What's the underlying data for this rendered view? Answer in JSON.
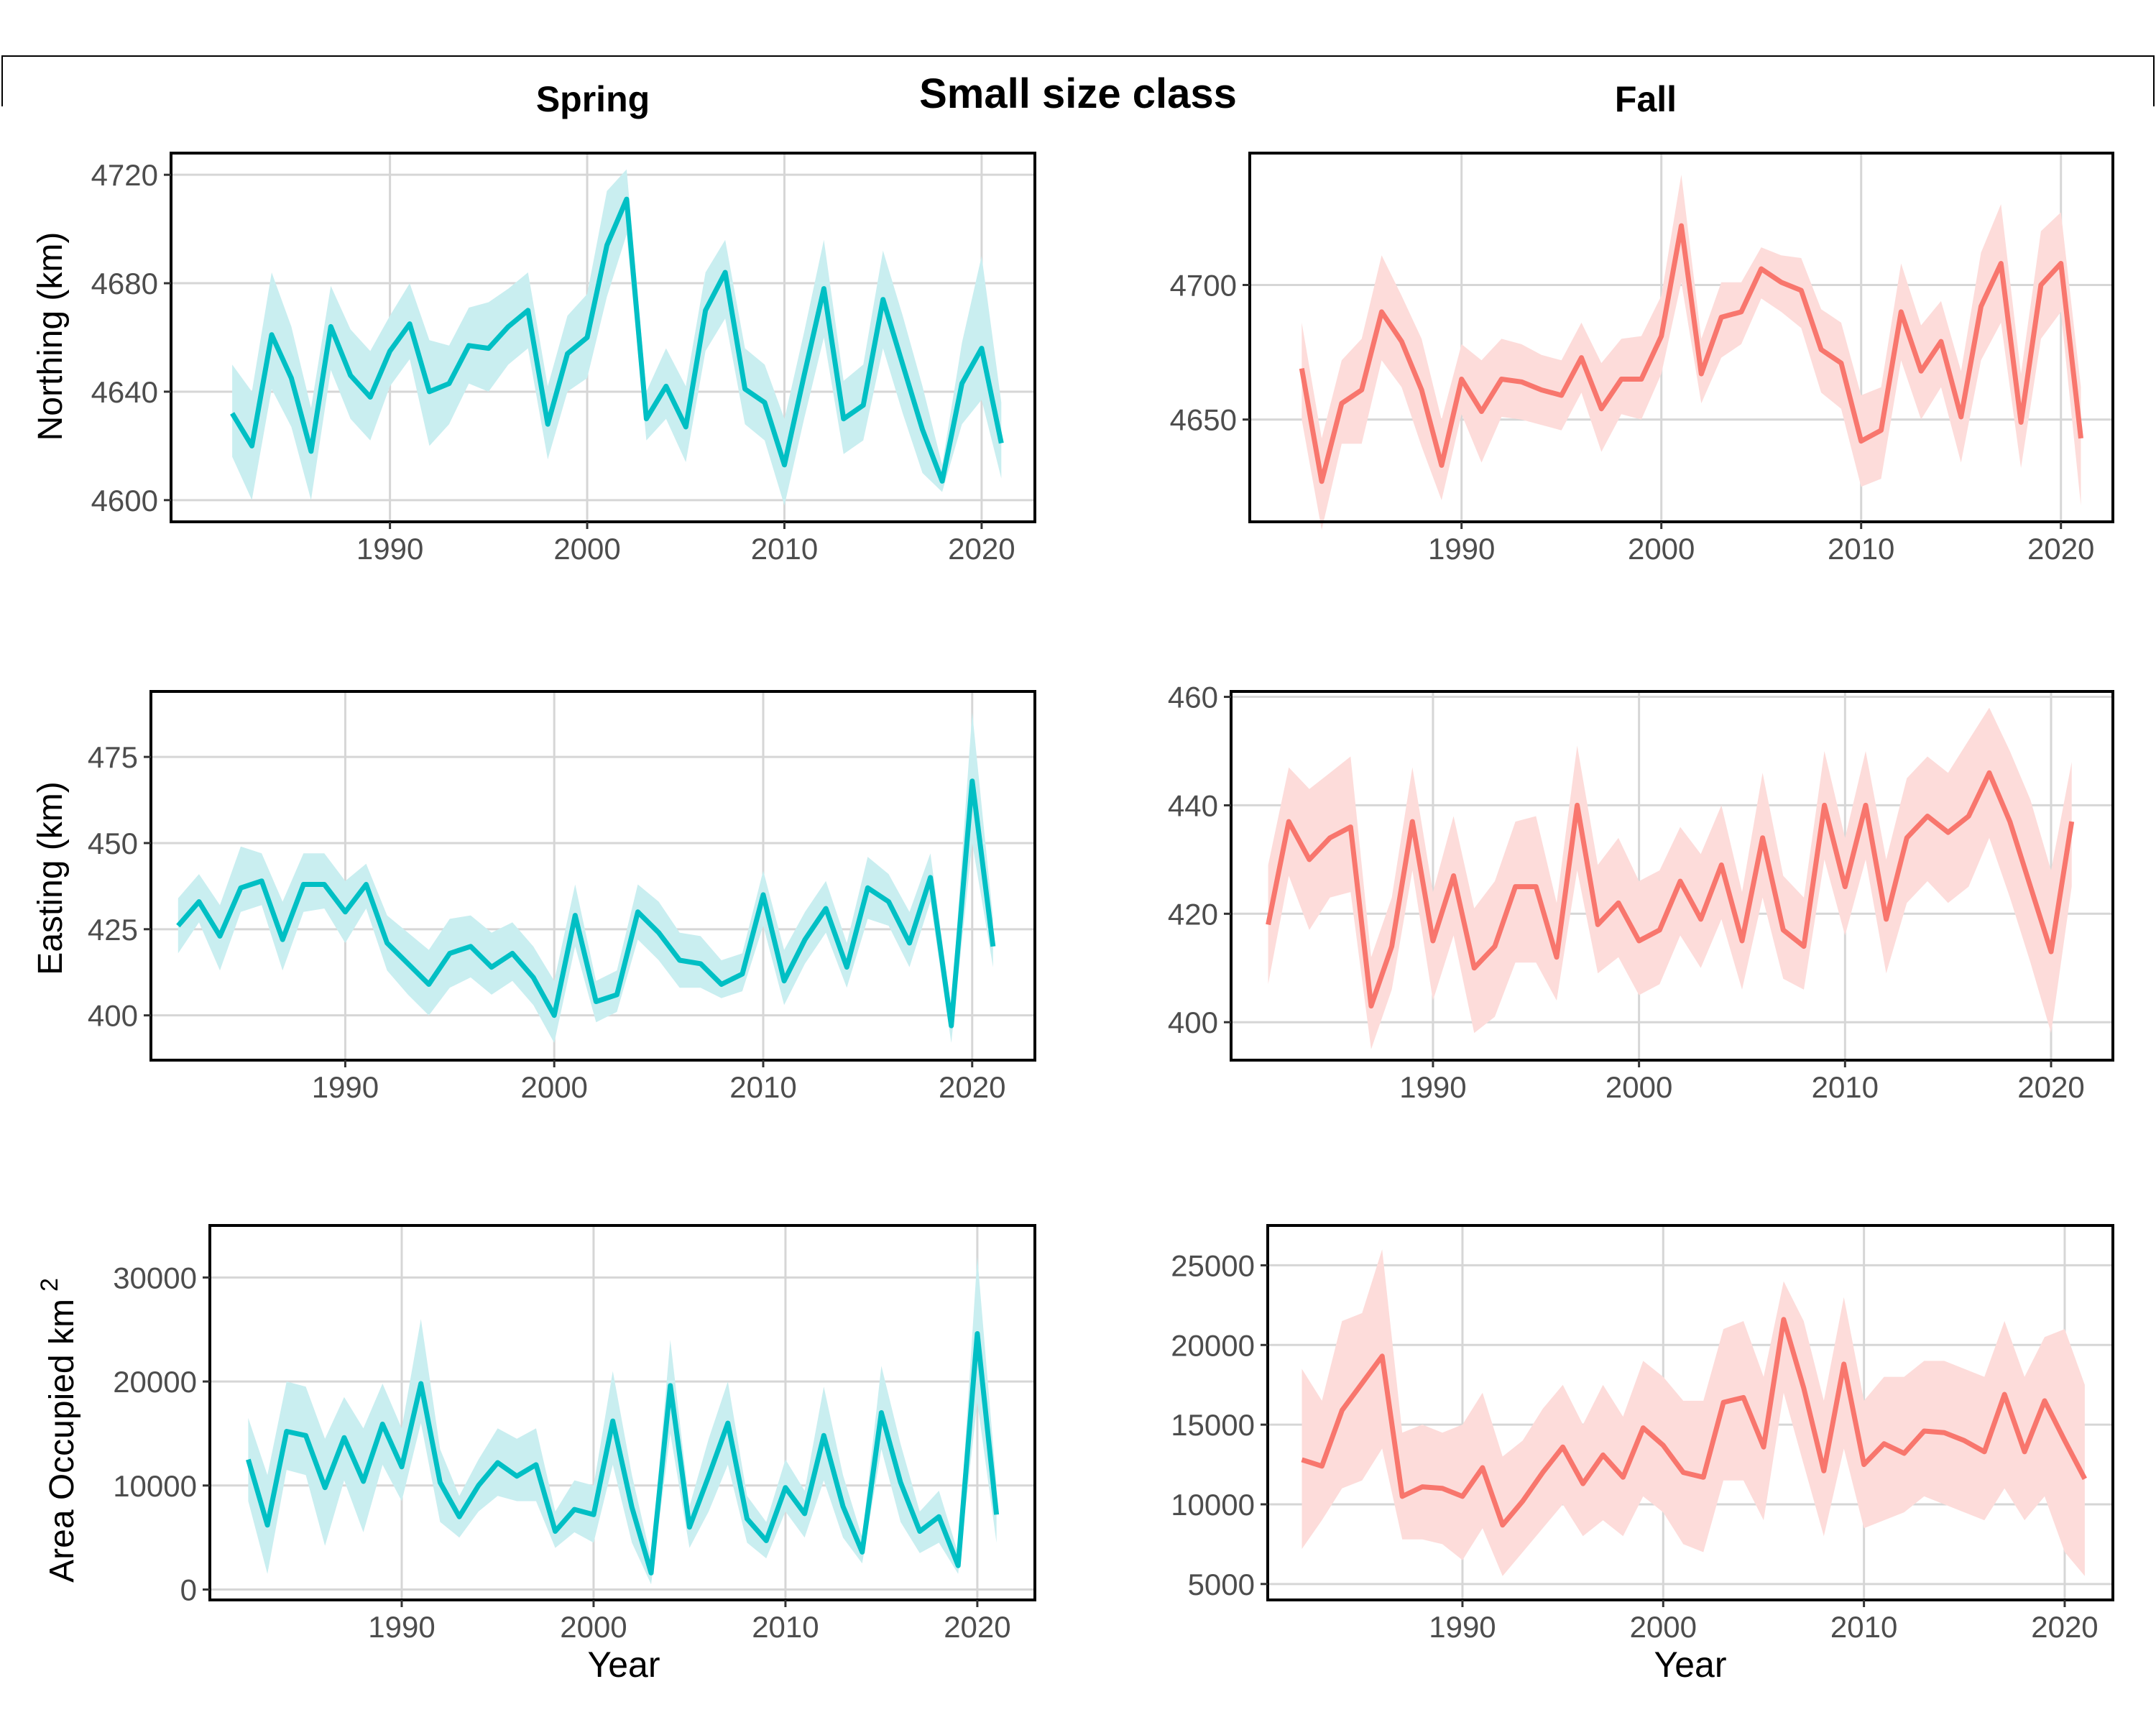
{
  "figure": {
    "title": "Small size class",
    "column_titles": [
      "Spring",
      "Fall"
    ],
    "x_axis_title": "Year",
    "row_axis_titles": [
      "Northing (km)",
      "Easting (km)",
      "Area Occupied km"
    ],
    "area_superscript": "2"
  },
  "colors": {
    "spring_line": "#00BFC4",
    "spring_band": "#C9EEF0",
    "fall_line": "#F8766D",
    "fall_band": "#FDDCDA",
    "grid": "#D6D6D6",
    "frame": "#000000"
  },
  "chart_data": [
    {
      "id": "spring-northing",
      "type": "line",
      "season": "Spring",
      "ylabel": "Northing (km)",
      "x": [
        1982,
        1983,
        1984,
        1985,
        1986,
        1987,
        1988,
        1989,
        1990,
        1991,
        1992,
        1993,
        1994,
        1995,
        1996,
        1997,
        1998,
        1999,
        2000,
        2001,
        2002,
        2003,
        2004,
        2005,
        2006,
        2007,
        2008,
        2009,
        2010,
        2011,
        2012,
        2013,
        2014,
        2015,
        2016,
        2017,
        2018,
        2019,
        2020,
        2021
      ],
      "y": [
        4632,
        4620,
        4661,
        4645,
        4618,
        4664,
        4646,
        4638,
        4655,
        4665,
        4640,
        4643,
        4657,
        4656,
        4664,
        4670,
        4628,
        4654,
        4660,
        4694,
        4711,
        4630,
        4642,
        4627,
        4670,
        4684,
        4641,
        4636,
        4613,
        4646,
        4678,
        4630,
        4635,
        4674,
        4650,
        4626,
        4607,
        4643,
        4656,
        4621
      ],
      "lower": [
        4616,
        4600,
        4641,
        4627,
        4600,
        4648,
        4630,
        4622,
        4642,
        4652,
        4620,
        4628,
        4643,
        4640,
        4650,
        4656,
        4615,
        4640,
        4645,
        4675,
        4698,
        4622,
        4630,
        4614,
        4655,
        4667,
        4628,
        4622,
        4598,
        4630,
        4660,
        4617,
        4622,
        4656,
        4632,
        4610,
        4603,
        4628,
        4637,
        4608
      ],
      "upper": [
        4650,
        4640,
        4684,
        4664,
        4634,
        4679,
        4663,
        4655,
        4668,
        4680,
        4659,
        4657,
        4671,
        4673,
        4678,
        4684,
        4642,
        4668,
        4676,
        4714,
        4722,
        4640,
        4656,
        4642,
        4684,
        4696,
        4656,
        4650,
        4630,
        4662,
        4696,
        4644,
        4650,
        4692,
        4668,
        4642,
        4613,
        4658,
        4690,
        4636
      ],
      "ylim": [
        4592,
        4728
      ],
      "yticks": [
        4600,
        4640,
        4680,
        4720
      ],
      "xlim": [
        1978.9,
        2022.7
      ],
      "xticks": [
        1990,
        2000,
        2010,
        2020
      ]
    },
    {
      "id": "fall-northing",
      "type": "line",
      "season": "Fall",
      "ylabel": "",
      "x": [
        1982,
        1983,
        1984,
        1985,
        1986,
        1987,
        1988,
        1989,
        1990,
        1991,
        1992,
        1993,
        1994,
        1995,
        1996,
        1997,
        1998,
        1999,
        2000,
        2001,
        2002,
        2003,
        2004,
        2005,
        2006,
        2007,
        2008,
        2009,
        2010,
        2011,
        2012,
        2013,
        2014,
        2015,
        2016,
        2017,
        2018,
        2019,
        2020,
        2021
      ],
      "y": [
        4669,
        4627,
        4656,
        4661,
        4690,
        4679,
        4661,
        4633,
        4665,
        4653,
        4665,
        4664,
        4661,
        4659,
        4673,
        4654,
        4665,
        4665,
        4681,
        4722,
        4667,
        4688,
        4690,
        4706,
        4701,
        4698,
        4676,
        4671,
        4642,
        4646,
        4690,
        4668,
        4679,
        4651,
        4692,
        4708,
        4649,
        4700,
        4708,
        4643
      ],
      "lower": [
        4650,
        4609,
        4641,
        4641,
        4672,
        4662,
        4640,
        4620,
        4652,
        4634,
        4651,
        4650,
        4648,
        4646,
        4660,
        4638,
        4652,
        4650,
        4667,
        4701,
        4656,
        4673,
        4678,
        4695,
        4690,
        4684,
        4660,
        4654,
        4625,
        4628,
        4672,
        4650,
        4662,
        4634,
        4672,
        4686,
        4632,
        4680,
        4690,
        4618
      ],
      "upper": [
        4686,
        4643,
        4672,
        4680,
        4711,
        4696,
        4680,
        4650,
        4678,
        4672,
        4680,
        4678,
        4674,
        4672,
        4686,
        4671,
        4680,
        4681,
        4696,
        4741,
        4680,
        4701,
        4701,
        4714,
        4711,
        4710,
        4691,
        4686,
        4659,
        4662,
        4708,
        4685,
        4694,
        4668,
        4712,
        4730,
        4667,
        4720,
        4727,
        4662
      ],
      "ylim": [
        4612,
        4749
      ],
      "yticks": [
        4650,
        4700
      ],
      "xlim": [
        1979.4,
        2022.6
      ],
      "xticks": [
        1990,
        2000,
        2010,
        2020
      ]
    },
    {
      "id": "spring-easting",
      "type": "line",
      "season": "Spring",
      "ylabel": "Easting (km)",
      "x": [
        1982,
        1983,
        1984,
        1985,
        1986,
        1987,
        1988,
        1989,
        1990,
        1991,
        1992,
        1993,
        1994,
        1995,
        1996,
        1997,
        1998,
        1999,
        2000,
        2001,
        2002,
        2003,
        2004,
        2005,
        2006,
        2007,
        2008,
        2009,
        2010,
        2011,
        2012,
        2013,
        2014,
        2015,
        2016,
        2017,
        2018,
        2019,
        2020,
        2021
      ],
      "y": [
        426,
        433,
        423,
        437,
        439,
        422,
        438,
        438,
        430,
        438,
        421,
        415,
        409,
        418,
        420,
        414,
        418,
        411,
        400,
        429,
        404,
        406,
        430,
        424,
        416,
        415,
        409,
        412,
        435,
        410,
        422,
        431,
        414,
        437,
        433,
        421,
        440,
        397,
        468,
        420
      ],
      "lower": [
        418,
        427,
        413,
        430,
        432,
        413,
        430,
        431,
        421,
        431,
        413,
        406,
        400,
        408,
        411,
        406,
        410,
        403,
        392,
        420,
        398,
        401,
        422,
        416,
        408,
        408,
        405,
        407,
        426,
        403,
        415,
        424,
        408,
        428,
        426,
        414,
        433,
        392,
        450,
        414
      ],
      "upper": [
        434,
        441,
        432,
        449,
        447,
        433,
        447,
        447,
        439,
        444,
        429,
        424,
        419,
        428,
        429,
        424,
        427,
        420,
        410,
        438,
        410,
        413,
        438,
        433,
        424,
        423,
        416,
        418,
        442,
        419,
        430,
        439,
        421,
        446,
        441,
        430,
        447,
        402,
        488,
        428
      ],
      "ylim": [
        387,
        494
      ],
      "yticks": [
        400,
        425,
        450,
        475
      ],
      "xlim": [
        1980.7,
        2023.0
      ],
      "xticks": [
        1990,
        2000,
        2010,
        2020
      ]
    },
    {
      "id": "fall-easting",
      "type": "line",
      "season": "Fall",
      "ylabel": "",
      "x": [
        1982,
        1983,
        1984,
        1985,
        1986,
        1987,
        1988,
        1989,
        1990,
        1991,
        1992,
        1993,
        1994,
        1995,
        1996,
        1997,
        1998,
        1999,
        2000,
        2001,
        2002,
        2003,
        2004,
        2005,
        2006,
        2007,
        2008,
        2009,
        2010,
        2011,
        2012,
        2013,
        2014,
        2015,
        2016,
        2017,
        2018,
        2019,
        2020,
        2021
      ],
      "y": [
        418,
        437,
        430,
        434,
        436,
        403,
        414,
        437,
        415,
        427,
        410,
        414,
        425,
        425,
        412,
        440,
        418,
        422,
        415,
        417,
        426,
        419,
        429,
        415,
        434,
        417,
        414,
        440,
        425,
        440,
        419,
        434,
        438,
        435,
        438,
        446,
        437,
        425,
        413,
        437
      ],
      "lower": [
        407,
        427,
        417,
        423,
        424,
        395,
        406,
        428,
        404,
        416,
        398,
        401,
        411,
        411,
        404,
        428,
        409,
        412,
        405,
        407,
        416,
        410,
        419,
        406,
        423,
        408,
        406,
        430,
        416,
        430,
        409,
        422,
        426,
        422,
        425,
        434,
        423,
        411,
        398,
        425
      ],
      "upper": [
        429,
        447,
        443,
        446,
        449,
        412,
        423,
        447,
        424,
        438,
        421,
        426,
        437,
        438,
        422,
        451,
        429,
        434,
        426,
        428,
        436,
        431,
        440,
        424,
        446,
        427,
        423,
        450,
        434,
        450,
        430,
        445,
        449,
        446,
        452,
        458,
        450,
        441,
        428,
        448
      ],
      "ylim": [
        393,
        461
      ],
      "yticks": [
        400,
        420,
        440,
        460
      ],
      "xlim": [
        1980.2,
        2023.0
      ],
      "xticks": [
        1990,
        2000,
        2010,
        2020
      ]
    },
    {
      "id": "spring-area",
      "type": "line",
      "season": "Spring",
      "ylabel": "Area Occupied km 2",
      "x": [
        1982,
        1983,
        1984,
        1985,
        1986,
        1987,
        1988,
        1989,
        1990,
        1991,
        1992,
        1993,
        1994,
        1995,
        1996,
        1997,
        1998,
        1999,
        2000,
        2001,
        2002,
        2003,
        2004,
        2005,
        2006,
        2007,
        2008,
        2009,
        2010,
        2011,
        2012,
        2013,
        2014,
        2015,
        2016,
        2017,
        2018,
        2019,
        2020,
        2021
      ],
      "y": [
        12500,
        6200,
        15200,
        14800,
        9800,
        14600,
        10400,
        15900,
        11800,
        19800,
        10300,
        7000,
        10000,
        12200,
        10900,
        12000,
        5600,
        7700,
        7200,
        16200,
        7900,
        1600,
        19600,
        6000,
        10900,
        16000,
        6800,
        4700,
        9800,
        7300,
        14800,
        8000,
        3600,
        17000,
        10300,
        5600,
        7000,
        2300,
        24600,
        7200
      ],
      "lower": [
        8500,
        1500,
        11500,
        11000,
        4200,
        10500,
        5500,
        12000,
        8500,
        16000,
        6500,
        5000,
        7500,
        9000,
        8500,
        8500,
        4000,
        5500,
        4500,
        12000,
        4500,
        500,
        15000,
        4000,
        7500,
        12000,
        4500,
        3000,
        7500,
        5000,
        10500,
        5000,
        2500,
        13500,
        6500,
        3500,
        4500,
        1500,
        18000,
        4500
      ],
      "upper": [
        16500,
        11000,
        20000,
        19500,
        14500,
        18500,
        15500,
        19800,
        15500,
        26000,
        13500,
        9000,
        12500,
        15500,
        14500,
        15500,
        7500,
        10500,
        10000,
        21000,
        11000,
        3000,
        24000,
        8000,
        14500,
        20000,
        9000,
        6500,
        12500,
        9500,
        19500,
        11000,
        5000,
        21500,
        14000,
        7500,
        9500,
        3500,
        32000,
        10000
      ],
      "ylim": [
        -1000,
        35000
      ],
      "yticks": [
        0,
        10000,
        20000,
        30000
      ],
      "xlim": [
        1980.0,
        2023.0
      ],
      "xticks": [
        1990,
        2000,
        2010,
        2020
      ]
    },
    {
      "id": "fall-area",
      "type": "line",
      "season": "Fall",
      "ylabel": "",
      "x": [
        1982,
        1983,
        1984,
        1985,
        1986,
        1987,
        1988,
        1989,
        1990,
        1991,
        1992,
        1993,
        1994,
        1995,
        1996,
        1997,
        1998,
        1999,
        2000,
        2001,
        2002,
        2003,
        2004,
        2005,
        2006,
        2007,
        2008,
        2009,
        2010,
        2011,
        2012,
        2013,
        2014,
        2015,
        2016,
        2017,
        2018,
        2019,
        2020,
        2021
      ],
      "y": [
        12800,
        12400,
        15900,
        17600,
        19300,
        10500,
        11100,
        11000,
        10500,
        12300,
        8700,
        10200,
        12000,
        13600,
        11300,
        13100,
        11700,
        14800,
        13700,
        12000,
        11700,
        16400,
        16700,
        13600,
        21600,
        17300,
        12100,
        18800,
        12500,
        13800,
        13200,
        14600,
        14500,
        14000,
        13300,
        16900,
        13300,
        16500,
        14000,
        11600
      ],
      "lower": [
        7200,
        9000,
        11000,
        11500,
        13500,
        7800,
        7800,
        7500,
        6500,
        8500,
        5500,
        7000,
        8500,
        10000,
        8000,
        9000,
        8000,
        10500,
        9500,
        7500,
        7000,
        11500,
        11500,
        9000,
        17000,
        12500,
        8000,
        13500,
        8500,
        9000,
        9500,
        10500,
        10000,
        9500,
        9000,
        11000,
        9000,
        10500,
        7000,
        5500
      ],
      "upper": [
        18500,
        16500,
        21500,
        22000,
        26000,
        14500,
        15000,
        14500,
        15000,
        17000,
        13000,
        14000,
        16000,
        17500,
        15000,
        17500,
        15500,
        19000,
        18000,
        16500,
        16500,
        21000,
        21500,
        18000,
        24000,
        21500,
        16500,
        23000,
        16500,
        18000,
        18000,
        19000,
        19000,
        18500,
        18000,
        21500,
        18000,
        20500,
        21000,
        17500
      ],
      "ylim": [
        4000,
        27500
      ],
      "yticks": [
        5000,
        10000,
        15000,
        20000,
        25000
      ],
      "xlim": [
        1980.3,
        2022.4
      ],
      "xticks": [
        1990,
        2000,
        2010,
        2020
      ]
    }
  ]
}
